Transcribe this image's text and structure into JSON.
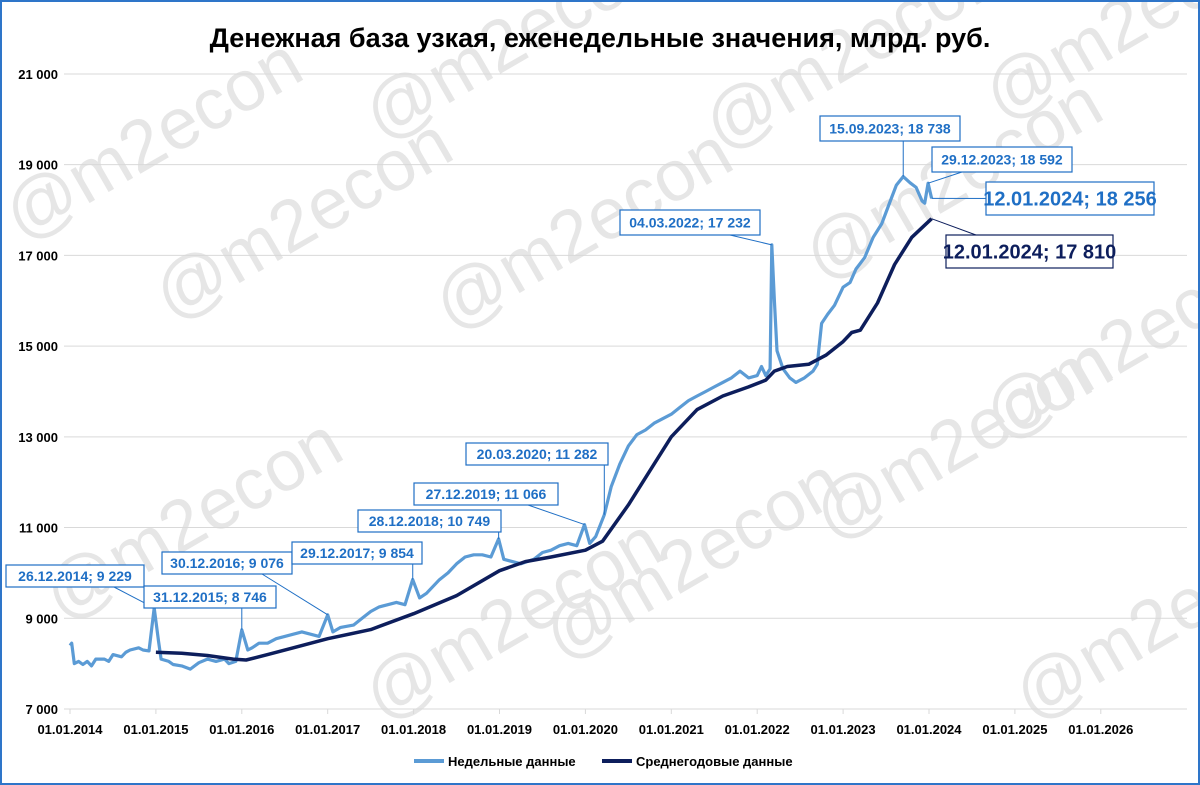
{
  "chart_data": {
    "type": "line",
    "title": "Денежная база узкая, еженедельные значения, млрд. руб.",
    "xlabel": "",
    "ylabel": "",
    "ylim": [
      7000,
      21000
    ],
    "yticks": [
      7000,
      9000,
      11000,
      13000,
      15000,
      17000,
      19000,
      21000
    ],
    "ytick_labels": [
      "7 000",
      "9 000",
      "11 000",
      "13 000",
      "15 000",
      "17 000",
      "19 000",
      "21 000"
    ],
    "xlim": [
      2014.0,
      2027.0
    ],
    "xticks": [
      2014,
      2015,
      2016,
      2017,
      2018,
      2019,
      2020,
      2021,
      2022,
      2023,
      2024,
      2025,
      2026
    ],
    "xtick_labels": [
      "01.01.2014",
      "01.01.2015",
      "01.01.2016",
      "01.01.2017",
      "01.01.2018",
      "01.01.2019",
      "01.01.2020",
      "01.01.2021",
      "01.01.2022",
      "01.01.2023",
      "01.01.2024",
      "01.01.2025",
      "01.01.2026"
    ],
    "grid": "horizontal",
    "legend_position": "bottom",
    "series": [
      {
        "name": "Недельные данные",
        "color": "#5b9bd5",
        "points": [
          [
            2014.0,
            8400
          ],
          [
            2014.02,
            8450
          ],
          [
            2014.05,
            8000
          ],
          [
            2014.1,
            8050
          ],
          [
            2014.15,
            7980
          ],
          [
            2014.2,
            8050
          ],
          [
            2014.25,
            7950
          ],
          [
            2014.3,
            8100
          ],
          [
            2014.4,
            8100
          ],
          [
            2014.45,
            8050
          ],
          [
            2014.5,
            8200
          ],
          [
            2014.6,
            8150
          ],
          [
            2014.65,
            8250
          ],
          [
            2014.7,
            8300
          ],
          [
            2014.8,
            8350
          ],
          [
            2014.85,
            8300
          ],
          [
            2014.92,
            8280
          ],
          [
            2014.98,
            9229
          ],
          [
            2015.03,
            8500
          ],
          [
            2015.06,
            8100
          ],
          [
            2015.15,
            8050
          ],
          [
            2015.2,
            7980
          ],
          [
            2015.3,
            7950
          ],
          [
            2015.4,
            7880
          ],
          [
            2015.45,
            7950
          ],
          [
            2015.5,
            8020
          ],
          [
            2015.6,
            8100
          ],
          [
            2015.7,
            8050
          ],
          [
            2015.8,
            8100
          ],
          [
            2015.85,
            8000
          ],
          [
            2015.93,
            8050
          ],
          [
            2016.0,
            8746
          ],
          [
            2016.07,
            8300
          ],
          [
            2016.12,
            8350
          ],
          [
            2016.2,
            8450
          ],
          [
            2016.3,
            8450
          ],
          [
            2016.4,
            8550
          ],
          [
            2016.5,
            8600
          ],
          [
            2016.6,
            8650
          ],
          [
            2016.7,
            8700
          ],
          [
            2016.8,
            8650
          ],
          [
            2016.9,
            8600
          ],
          [
            2017.0,
            9076
          ],
          [
            2017.06,
            8700
          ],
          [
            2017.15,
            8800
          ],
          [
            2017.3,
            8850
          ],
          [
            2017.4,
            9000
          ],
          [
            2017.5,
            9150
          ],
          [
            2017.6,
            9250
          ],
          [
            2017.7,
            9300
          ],
          [
            2017.8,
            9350
          ],
          [
            2017.9,
            9300
          ],
          [
            2017.99,
            9854
          ],
          [
            2018.07,
            9450
          ],
          [
            2018.15,
            9550
          ],
          [
            2018.3,
            9850
          ],
          [
            2018.4,
            10000
          ],
          [
            2018.5,
            10200
          ],
          [
            2018.6,
            10350
          ],
          [
            2018.7,
            10400
          ],
          [
            2018.8,
            10400
          ],
          [
            2018.9,
            10350
          ],
          [
            2018.99,
            10749
          ],
          [
            2019.05,
            10300
          ],
          [
            2019.15,
            10250
          ],
          [
            2019.25,
            10200
          ],
          [
            2019.4,
            10300
          ],
          [
            2019.5,
            10450
          ],
          [
            2019.6,
            10500
          ],
          [
            2019.7,
            10600
          ],
          [
            2019.8,
            10650
          ],
          [
            2019.9,
            10600
          ],
          [
            2019.99,
            11066
          ],
          [
            2020.05,
            10650
          ],
          [
            2020.12,
            10800
          ],
          [
            2020.22,
            11282
          ],
          [
            2020.3,
            11900
          ],
          [
            2020.4,
            12400
          ],
          [
            2020.5,
            12800
          ],
          [
            2020.6,
            13050
          ],
          [
            2020.7,
            13150
          ],
          [
            2020.8,
            13300
          ],
          [
            2020.9,
            13400
          ],
          [
            2021.0,
            13500
          ],
          [
            2021.1,
            13650
          ],
          [
            2021.2,
            13800
          ],
          [
            2021.3,
            13900
          ],
          [
            2021.4,
            14000
          ],
          [
            2021.5,
            14100
          ],
          [
            2021.6,
            14200
          ],
          [
            2021.7,
            14300
          ],
          [
            2021.8,
            14450
          ],
          [
            2021.9,
            14300
          ],
          [
            2022.0,
            14350
          ],
          [
            2022.05,
            14550
          ],
          [
            2022.1,
            14350
          ],
          [
            2022.15,
            14500
          ],
          [
            2022.17,
            17232
          ],
          [
            2022.2,
            16000
          ],
          [
            2022.23,
            14900
          ],
          [
            2022.3,
            14500
          ],
          [
            2022.38,
            14300
          ],
          [
            2022.45,
            14200
          ],
          [
            2022.55,
            14300
          ],
          [
            2022.65,
            14450
          ],
          [
            2022.7,
            14600
          ],
          [
            2022.75,
            15500
          ],
          [
            2022.82,
            15700
          ],
          [
            2022.9,
            15900
          ],
          [
            2023.0,
            16300
          ],
          [
            2023.08,
            16400
          ],
          [
            2023.15,
            16700
          ],
          [
            2023.25,
            16950
          ],
          [
            2023.35,
            17400
          ],
          [
            2023.45,
            17700
          ],
          [
            2023.55,
            18200
          ],
          [
            2023.62,
            18550
          ],
          [
            2023.7,
            18738
          ],
          [
            2023.78,
            18600
          ],
          [
            2023.85,
            18500
          ],
          [
            2023.92,
            18200
          ],
          [
            2023.95,
            18150
          ],
          [
            2023.99,
            18592
          ],
          [
            2024.03,
            18256
          ]
        ]
      },
      {
        "name": "Среднегодовые данные",
        "color": "#0d1e5c",
        "points": [
          [
            2015.0,
            8250
          ],
          [
            2015.3,
            8230
          ],
          [
            2015.6,
            8180
          ],
          [
            2015.9,
            8100
          ],
          [
            2016.05,
            8080
          ],
          [
            2016.3,
            8200
          ],
          [
            2016.6,
            8350
          ],
          [
            2017.0,
            8550
          ],
          [
            2017.5,
            8750
          ],
          [
            2018.0,
            9100
          ],
          [
            2018.5,
            9500
          ],
          [
            2019.0,
            10050
          ],
          [
            2019.3,
            10250
          ],
          [
            2019.6,
            10350
          ],
          [
            2020.0,
            10500
          ],
          [
            2020.2,
            10700
          ],
          [
            2020.5,
            11500
          ],
          [
            2020.8,
            12400
          ],
          [
            2021.0,
            13000
          ],
          [
            2021.3,
            13600
          ],
          [
            2021.6,
            13900
          ],
          [
            2021.9,
            14100
          ],
          [
            2022.1,
            14250
          ],
          [
            2022.2,
            14450
          ],
          [
            2022.35,
            14550
          ],
          [
            2022.6,
            14600
          ],
          [
            2022.8,
            14800
          ],
          [
            2023.0,
            15100
          ],
          [
            2023.1,
            15300
          ],
          [
            2023.2,
            15350
          ],
          [
            2023.4,
            15950
          ],
          [
            2023.6,
            16800
          ],
          [
            2023.8,
            17400
          ],
          [
            2024.03,
            17810
          ]
        ]
      }
    ],
    "annotations": [
      {
        "text": "26.12.2014; 9 229",
        "x": 2014.98,
        "y": 9229,
        "series": 0
      },
      {
        "text": "31.12.2015; 8 746",
        "x": 2016.0,
        "y": 8746,
        "series": 0
      },
      {
        "text": "30.12.2016; 9 076",
        "x": 2017.0,
        "y": 9076,
        "series": 0
      },
      {
        "text": "29.12.2017; 9 854",
        "x": 2017.99,
        "y": 9854,
        "series": 0
      },
      {
        "text": "28.12.2018; 10 749",
        "x": 2018.99,
        "y": 10749,
        "series": 0
      },
      {
        "text": "27.12.2019; 11 066",
        "x": 2019.99,
        "y": 11066,
        "series": 0
      },
      {
        "text": "20.03.2020; 11 282",
        "x": 2020.22,
        "y": 11282,
        "series": 0
      },
      {
        "text": "04.03.2022; 17 232",
        "x": 2022.17,
        "y": 17232,
        "series": 0
      },
      {
        "text": "15.09.2023; 18 738",
        "x": 2023.7,
        "y": 18738,
        "series": 0
      },
      {
        "text": "29.12.2023; 18 592",
        "x": 2023.99,
        "y": 18592,
        "series": 0
      },
      {
        "text": "12.01.2024; 18 256",
        "x": 2024.03,
        "y": 18256,
        "series": 0
      },
      {
        "text": "12.01.2024; 17 810",
        "x": 2024.03,
        "y": 17810,
        "series": 1
      }
    ]
  },
  "watermark": "@m2econ"
}
